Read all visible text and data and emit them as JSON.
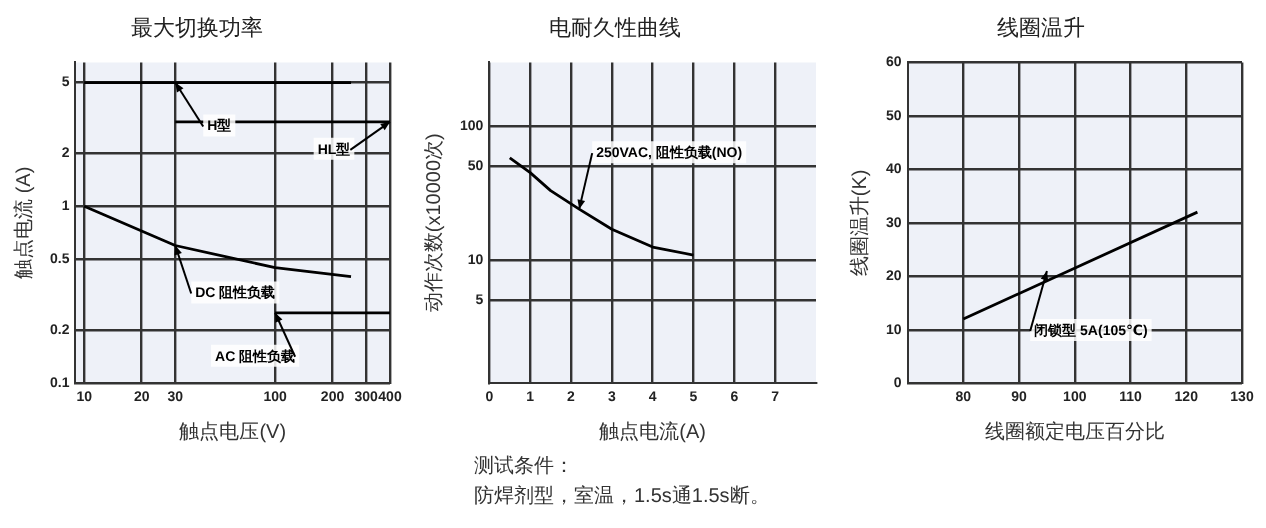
{
  "chart_data": [
    {
      "type": "line",
      "title": "最大切换功率",
      "xlabel": "触点电压(V)",
      "ylabel": "触点电流 (A)",
      "log": "xy",
      "grid": true,
      "legend": false,
      "marker": "none",
      "line_style": "solid",
      "xlim": [
        9,
        400
      ],
      "xticks": [
        10,
        20,
        30,
        100,
        200,
        300,
        400
      ],
      "ylim": [
        0.1,
        6.5
      ],
      "yticks": [
        0.1,
        0.2,
        0.5,
        1,
        2,
        5
      ],
      "series": [
        {
          "color": "#000000",
          "x": [
            10,
            250
          ],
          "values": [
            5,
            5
          ]
        },
        {
          "color": "#000000",
          "x": [
            30,
            400
          ],
          "values": [
            3,
            3
          ]
        },
        {
          "color": "#000000",
          "x": [
            10,
            30,
            100,
            250
          ],
          "values": [
            1,
            0.6,
            0.45,
            0.4
          ]
        },
        {
          "color": "#000000",
          "x": [
            100,
            400
          ],
          "values": [
            0.25,
            0.25
          ]
        }
      ],
      "annotations": [
        {
          "text": "H型",
          "x": 30,
          "y": 5
        },
        {
          "text": "HL型",
          "x": 400,
          "y": 3
        },
        {
          "text": "DC 阻性负载",
          "x": 30,
          "y": 0.6
        },
        {
          "text": "AC 阻性负载",
          "x": 100,
          "y": 0.25
        }
      ]
    },
    {
      "type": "line",
      "title": "电耐久性曲线",
      "xlabel": "触点电流(A)",
      "ylabel": "动作次数(x10000次)",
      "log": "y",
      "grid": true,
      "legend": false,
      "marker": "none",
      "line_style": "solid",
      "xlim": [
        0,
        8
      ],
      "xticks": [
        0,
        1,
        2,
        3,
        4,
        5,
        6,
        7
      ],
      "ylim": [
        1.2,
        300
      ],
      "yticks": [
        5,
        10,
        50,
        100
      ],
      "series": [
        {
          "color": "#000000",
          "x": [
            0.5,
            1,
            1.5,
            2.2,
            3,
            4,
            5
          ],
          "values": [
            58,
            45,
            33,
            24,
            17,
            12.5,
            10.9
          ]
        }
      ],
      "annotations": [
        {
          "text": "250VAC, 阻性负载(NO)",
          "x": 2.2,
          "y": 24
        },
        "测试条件：",
        "防焊剂型，室温，1.5s通1.5s断。"
      ]
    },
    {
      "type": "line",
      "title": "线圈温升",
      "xlabel": "线圈额定电压百分比",
      "ylabel": "线圈温升(K)",
      "grid": true,
      "legend": false,
      "marker": "none",
      "line_style": "solid",
      "xlim": [
        70,
        130
      ],
      "xticks": [
        80,
        90,
        100,
        110,
        120,
        130
      ],
      "ylim": [
        0,
        60
      ],
      "yticks": [
        0,
        10,
        20,
        30,
        40,
        50,
        60
      ],
      "series": [
        {
          "color": "#000000",
          "x": [
            80,
            122
          ],
          "values": [
            12,
            32
          ]
        }
      ],
      "annotations": [
        {
          "text": "闭锁型 5A(105℃)",
          "x": 95,
          "y": 21
        }
      ]
    }
  ]
}
